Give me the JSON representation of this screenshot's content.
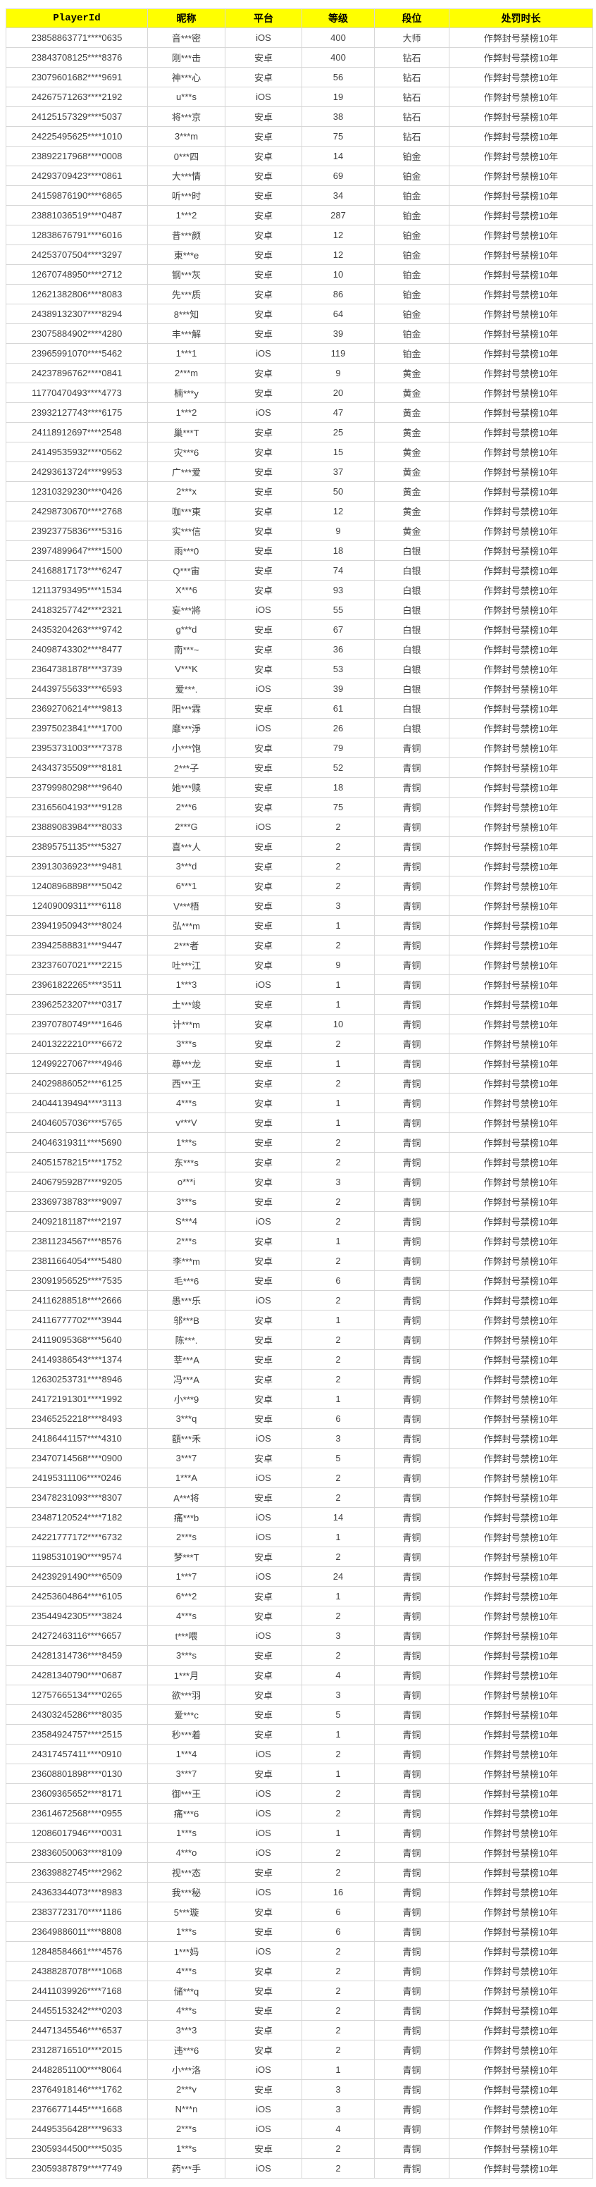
{
  "table": {
    "headers": [
      "PlayerId",
      "昵称",
      "平台",
      "等级",
      "段位",
      "处罚时长"
    ],
    "header_bg_color": "#ffff00",
    "punishment_text": "作弊封号禁榜10年",
    "platform_values": [
      "iOS",
      "安卓"
    ],
    "rank_values": [
      "大师",
      "钻石",
      "铂金",
      "黄金",
      "白银",
      "青铜"
    ],
    "rows": [
      [
        "23858863771****0635",
        "音***密",
        "iOS",
        "400",
        "大师",
        "作弊封号禁榜10年"
      ],
      [
        "23843708125****8376",
        "刚***击",
        "安卓",
        "400",
        "钻石",
        "作弊封号禁榜10年"
      ],
      [
        "23079601682****9691",
        "神***心",
        "安卓",
        "56",
        "钻石",
        "作弊封号禁榜10年"
      ],
      [
        "24267571263****2192",
        "u***s",
        "iOS",
        "19",
        "钻石",
        "作弊封号禁榜10年"
      ],
      [
        "24125157329****5037",
        "将***京",
        "安卓",
        "38",
        "钻石",
        "作弊封号禁榜10年"
      ],
      [
        "24225495625****1010",
        "3***m",
        "安卓",
        "75",
        "钻石",
        "作弊封号禁榜10年"
      ],
      [
        "23892217968****0008",
        "0***四",
        "安卓",
        "14",
        "铂金",
        "作弊封号禁榜10年"
      ],
      [
        "24293709423****0861",
        "大***情",
        "安卓",
        "69",
        "铂金",
        "作弊封号禁榜10年"
      ],
      [
        "24159876190****6865",
        "听***时",
        "安卓",
        "34",
        "铂金",
        "作弊封号禁榜10年"
      ],
      [
        "23881036519****0487",
        "1***2",
        "安卓",
        "287",
        "铂金",
        "作弊封号禁榜10年"
      ],
      [
        "12838676791****6016",
        "昔***颜",
        "安卓",
        "12",
        "铂金",
        "作弊封号禁榜10年"
      ],
      [
        "24253707504****3297",
        "東***e",
        "安卓",
        "12",
        "铂金",
        "作弊封号禁榜10年"
      ],
      [
        "12670748950****2712",
        "钢***灰",
        "安卓",
        "10",
        "铂金",
        "作弊封号禁榜10年"
      ],
      [
        "12621382806****8083",
        "先***质",
        "安卓",
        "86",
        "铂金",
        "作弊封号禁榜10年"
      ],
      [
        "24389132307****8294",
        "8***知",
        "安卓",
        "64",
        "铂金",
        "作弊封号禁榜10年"
      ],
      [
        "23075884902****4280",
        "丰***解",
        "安卓",
        "39",
        "铂金",
        "作弊封号禁榜10年"
      ],
      [
        "23965991070****5462",
        "1***1",
        "iOS",
        "119",
        "铂金",
        "作弊封号禁榜10年"
      ],
      [
        "24237896762****0841",
        "2***m",
        "安卓",
        "9",
        "黄金",
        "作弊封号禁榜10年"
      ],
      [
        "11770470493****4773",
        "楠***y",
        "安卓",
        "20",
        "黄金",
        "作弊封号禁榜10年"
      ],
      [
        "23932127743****6175",
        "1***2",
        "iOS",
        "47",
        "黄金",
        "作弊封号禁榜10年"
      ],
      [
        "24118912697****2548",
        "巢***T",
        "安卓",
        "25",
        "黄金",
        "作弊封号禁榜10年"
      ],
      [
        "24149535932****0562",
        "灾***6",
        "安卓",
        "15",
        "黄金",
        "作弊封号禁榜10年"
      ],
      [
        "24293613724****9953",
        "广***爱",
        "安卓",
        "37",
        "黄金",
        "作弊封号禁榜10年"
      ],
      [
        "12310329230****0426",
        "2***x",
        "安卓",
        "50",
        "黄金",
        "作弊封号禁榜10年"
      ],
      [
        "24298730670****2768",
        "咖***東",
        "安卓",
        "12",
        "黄金",
        "作弊封号禁榜10年"
      ],
      [
        "23923775836****5316",
        "实***信",
        "安卓",
        "9",
        "黄金",
        "作弊封号禁榜10年"
      ],
      [
        "23974899647****1500",
        "雨***0",
        "安卓",
        "18",
        "白银",
        "作弊封号禁榜10年"
      ],
      [
        "24168817173****6247",
        "Q***宙",
        "安卓",
        "74",
        "白银",
        "作弊封号禁榜10年"
      ],
      [
        "12113793495****1534",
        "X***6",
        "安卓",
        "93",
        "白银",
        "作弊封号禁榜10年"
      ],
      [
        "24183257742****2321",
        "妄***將",
        "iOS",
        "55",
        "白银",
        "作弊封号禁榜10年"
      ],
      [
        "24353204263****9742",
        "g***d",
        "安卓",
        "67",
        "白银",
        "作弊封号禁榜10年"
      ],
      [
        "24098743302****8477",
        "南***~",
        "安卓",
        "36",
        "白银",
        "作弊封号禁榜10年"
      ],
      [
        "23647381878****3739",
        "V***K",
        "安卓",
        "53",
        "白银",
        "作弊封号禁榜10年"
      ],
      [
        "24439755633****6593",
        "爱***.",
        "iOS",
        "39",
        "白银",
        "作弊封号禁榜10年"
      ],
      [
        "23692706214****9813",
        "阳***霖",
        "安卓",
        "61",
        "白银",
        "作弊封号禁榜10年"
      ],
      [
        "23975023841****1700",
        "靡***淨",
        "iOS",
        "26",
        "白银",
        "作弊封号禁榜10年"
      ],
      [
        "23953731003****7378",
        "小***饱",
        "安卓",
        "79",
        "青铜",
        "作弊封号禁榜10年"
      ],
      [
        "24343735509****8181",
        "2***子",
        "安卓",
        "52",
        "青铜",
        "作弊封号禁榜10年"
      ],
      [
        "23799980298****9640",
        "她***赎",
        "安卓",
        "18",
        "青铜",
        "作弊封号禁榜10年"
      ],
      [
        "23165604193****9128",
        "2***6",
        "安卓",
        "75",
        "青铜",
        "作弊封号禁榜10年"
      ],
      [
        "23889083984****8033",
        "2***G",
        "iOS",
        "2",
        "青铜",
        "作弊封号禁榜10年"
      ],
      [
        "23895751135****5327",
        "喜***人",
        "安卓",
        "2",
        "青铜",
        "作弊封号禁榜10年"
      ],
      [
        "23913036923****9481",
        "3***d",
        "安卓",
        "2",
        "青铜",
        "作弊封号禁榜10年"
      ],
      [
        "12408968898****5042",
        "6***1",
        "安卓",
        "2",
        "青铜",
        "作弊封号禁榜10年"
      ],
      [
        "12409009311****6118",
        "V***梧",
        "安卓",
        "3",
        "青铜",
        "作弊封号禁榜10年"
      ],
      [
        "23941950943****8024",
        "弘***m",
        "安卓",
        "1",
        "青铜",
        "作弊封号禁榜10年"
      ],
      [
        "23942588831****9447",
        "2***者",
        "安卓",
        "2",
        "青铜",
        "作弊封号禁榜10年"
      ],
      [
        "23237607021****2215",
        "吐***江",
        "安卓",
        "9",
        "青铜",
        "作弊封号禁榜10年"
      ],
      [
        "23961822265****3511",
        "1***3",
        "iOS",
        "1",
        "青铜",
        "作弊封号禁榜10年"
      ],
      [
        "23962523207****0317",
        "土***竣",
        "安卓",
        "1",
        "青铜",
        "作弊封号禁榜10年"
      ],
      [
        "23970780749****1646",
        "计***m",
        "安卓",
        "10",
        "青铜",
        "作弊封号禁榜10年"
      ],
      [
        "24013222210****6672",
        "3***s",
        "安卓",
        "2",
        "青铜",
        "作弊封号禁榜10年"
      ],
      [
        "12499227067****4946",
        "尊***龙",
        "安卓",
        "1",
        "青铜",
        "作弊封号禁榜10年"
      ],
      [
        "24029886052****6125",
        "西***王",
        "安卓",
        "2",
        "青铜",
        "作弊封号禁榜10年"
      ],
      [
        "24044139494****3113",
        "4***s",
        "安卓",
        "1",
        "青铜",
        "作弊封号禁榜10年"
      ],
      [
        "24046057036****5765",
        "v***V",
        "安卓",
        "1",
        "青铜",
        "作弊封号禁榜10年"
      ],
      [
        "24046319311****5690",
        "1***s",
        "安卓",
        "2",
        "青铜",
        "作弊封号禁榜10年"
      ],
      [
        "24051578215****1752",
        "东***s",
        "安卓",
        "2",
        "青铜",
        "作弊封号禁榜10年"
      ],
      [
        "24067959287****9205",
        "o***i",
        "安卓",
        "3",
        "青铜",
        "作弊封号禁榜10年"
      ],
      [
        "23369738783****9097",
        "3***s",
        "安卓",
        "2",
        "青铜",
        "作弊封号禁榜10年"
      ],
      [
        "24092181187****2197",
        "S***4",
        "iOS",
        "2",
        "青铜",
        "作弊封号禁榜10年"
      ],
      [
        "23811234567****8576",
        "2***s",
        "安卓",
        "1",
        "青铜",
        "作弊封号禁榜10年"
      ],
      [
        "23811664054****5480",
        "李***m",
        "安卓",
        "2",
        "青铜",
        "作弊封号禁榜10年"
      ],
      [
        "23091956525****7535",
        "毛***6",
        "安卓",
        "6",
        "青铜",
        "作弊封号禁榜10年"
      ],
      [
        "24116288518****2666",
        "愚***乐",
        "iOS",
        "2",
        "青铜",
        "作弊封号禁榜10年"
      ],
      [
        "24116777702****3944",
        "邬***B",
        "安卓",
        "1",
        "青铜",
        "作弊封号禁榜10年"
      ],
      [
        "24119095368****5640",
        "陈***.",
        "安卓",
        "2",
        "青铜",
        "作弊封号禁榜10年"
      ],
      [
        "24149386543****1374",
        "莘***A",
        "安卓",
        "2",
        "青铜",
        "作弊封号禁榜10年"
      ],
      [
        "12630253731****8946",
        "冯***A",
        "安卓",
        "2",
        "青铜",
        "作弊封号禁榜10年"
      ],
      [
        "24172191301****1992",
        "小***9",
        "安卓",
        "1",
        "青铜",
        "作弊封号禁榜10年"
      ],
      [
        "23465252218****8493",
        "3***q",
        "安卓",
        "6",
        "青铜",
        "作弊封号禁榜10年"
      ],
      [
        "24186441157****4310",
        "額***禾",
        "iOS",
        "3",
        "青铜",
        "作弊封号禁榜10年"
      ],
      [
        "23470714568****0900",
        "3***7",
        "安卓",
        "5",
        "青铜",
        "作弊封号禁榜10年"
      ],
      [
        "24195311106****0246",
        "1***A",
        "iOS",
        "2",
        "青铜",
        "作弊封号禁榜10年"
      ],
      [
        "23478231093****8307",
        "A***将",
        "安卓",
        "2",
        "青铜",
        "作弊封号禁榜10年"
      ],
      [
        "23487120524****7182",
        "痛***b",
        "iOS",
        "14",
        "青铜",
        "作弊封号禁榜10年"
      ],
      [
        "24221777172****6732",
        "2***s",
        "iOS",
        "1",
        "青铜",
        "作弊封号禁榜10年"
      ],
      [
        "11985310190****9574",
        "梦***T",
        "安卓",
        "2",
        "青铜",
        "作弊封号禁榜10年"
      ],
      [
        "24239291490****6509",
        "1***7",
        "iOS",
        "24",
        "青铜",
        "作弊封号禁榜10年"
      ],
      [
        "24253604864****6105",
        "6***2",
        "安卓",
        "1",
        "青铜",
        "作弊封号禁榜10年"
      ],
      [
        "23544942305****3824",
        "4***s",
        "安卓",
        "2",
        "青铜",
        "作弊封号禁榜10年"
      ],
      [
        "24272463116****6657",
        "t***喂",
        "iOS",
        "3",
        "青铜",
        "作弊封号禁榜10年"
      ],
      [
        "24281314736****8459",
        "3***s",
        "安卓",
        "2",
        "青铜",
        "作弊封号禁榜10年"
      ],
      [
        "24281340790****0687",
        "1***月",
        "安卓",
        "4",
        "青铜",
        "作弊封号禁榜10年"
      ],
      [
        "12757665134****0265",
        "欲***羽",
        "安卓",
        "3",
        "青铜",
        "作弊封号禁榜10年"
      ],
      [
        "24303245286****8035",
        "爱***c",
        "安卓",
        "5",
        "青铜",
        "作弊封号禁榜10年"
      ],
      [
        "23584924757****2515",
        "秒***着",
        "安卓",
        "1",
        "青铜",
        "作弊封号禁榜10年"
      ],
      [
        "24317457411****0910",
        "1***4",
        "iOS",
        "2",
        "青铜",
        "作弊封号禁榜10年"
      ],
      [
        "23608801898****0130",
        "3***7",
        "安卓",
        "1",
        "青铜",
        "作弊封号禁榜10年"
      ],
      [
        "23609365652****8171",
        "御***王",
        "iOS",
        "2",
        "青铜",
        "作弊封号禁榜10年"
      ],
      [
        "23614672568****0955",
        "痛***6",
        "iOS",
        "2",
        "青铜",
        "作弊封号禁榜10年"
      ],
      [
        "12086017946****0031",
        "1***s",
        "iOS",
        "1",
        "青铜",
        "作弊封号禁榜10年"
      ],
      [
        "23836050063****8109",
        "4***o",
        "iOS",
        "2",
        "青铜",
        "作弊封号禁榜10年"
      ],
      [
        "23639882745****2962",
        "视***态",
        "安卓",
        "2",
        "青铜",
        "作弊封号禁榜10年"
      ],
      [
        "24363344073****8983",
        "我***秘",
        "iOS",
        "16",
        "青铜",
        "作弊封号禁榜10年"
      ],
      [
        "23837723170****1186",
        "5***璇",
        "安卓",
        "6",
        "青铜",
        "作弊封号禁榜10年"
      ],
      [
        "23649886011****8808",
        "1***s",
        "安卓",
        "6",
        "青铜",
        "作弊封号禁榜10年"
      ],
      [
        "12848584661****4576",
        "1***妈",
        "iOS",
        "2",
        "青铜",
        "作弊封号禁榜10年"
      ],
      [
        "24388287078****1068",
        "4***s",
        "安卓",
        "2",
        "青铜",
        "作弊封号禁榜10年"
      ],
      [
        "24411039926****7168",
        "储***q",
        "安卓",
        "2",
        "青铜",
        "作弊封号禁榜10年"
      ],
      [
        "24455153242****0203",
        "4***s",
        "安卓",
        "2",
        "青铜",
        "作弊封号禁榜10年"
      ],
      [
        "24471345546****6537",
        "3***3",
        "安卓",
        "2",
        "青铜",
        "作弊封号禁榜10年"
      ],
      [
        "23128716510****2015",
        "违***6",
        "安卓",
        "2",
        "青铜",
        "作弊封号禁榜10年"
      ],
      [
        "24482851100****8064",
        "小***洛",
        "iOS",
        "1",
        "青铜",
        "作弊封号禁榜10年"
      ],
      [
        "23764918146****1762",
        "2***v",
        "安卓",
        "3",
        "青铜",
        "作弊封号禁榜10年"
      ],
      [
        "23766771445****1668",
        "N***n",
        "iOS",
        "3",
        "青铜",
        "作弊封号禁榜10年"
      ],
      [
        "24495356428****9633",
        "2***s",
        "iOS",
        "4",
        "青铜",
        "作弊封号禁榜10年"
      ],
      [
        "23059344500****5035",
        "1***s",
        "安卓",
        "2",
        "青铜",
        "作弊封号禁榜10年"
      ],
      [
        "23059387879****7749",
        "药***手",
        "iOS",
        "2",
        "青铜",
        "作弊封号禁榜10年"
      ]
    ]
  }
}
